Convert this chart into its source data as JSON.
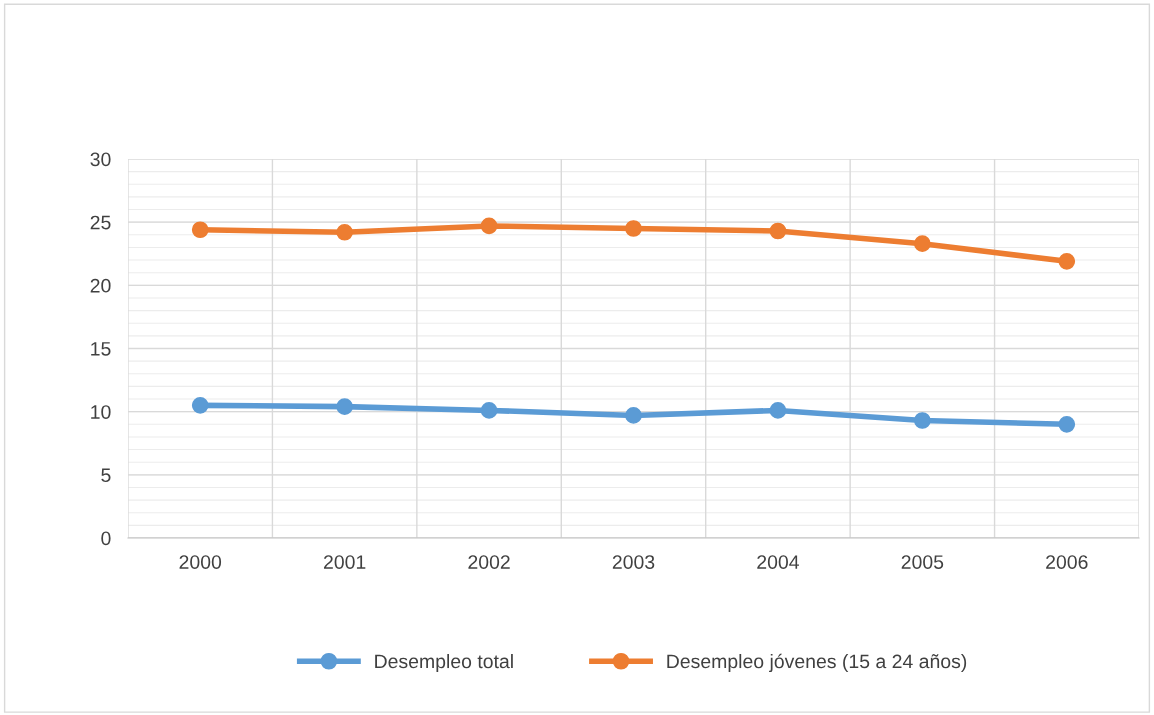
{
  "chart_data": {
    "type": "line",
    "categories": [
      "2000",
      "2001",
      "2002",
      "2003",
      "2004",
      "2005",
      "2006"
    ],
    "series": [
      {
        "name": "Desempleo total",
        "color": "#5b9bd5",
        "values": [
          10.5,
          10.4,
          10.1,
          9.7,
          10.1,
          9.3,
          9.0
        ]
      },
      {
        "name": "Desempleo jóvenes (15 a 24 años)",
        "color": "#ed7d31",
        "values": [
          24.4,
          24.2,
          24.7,
          24.5,
          24.3,
          23.3,
          21.9
        ]
      }
    ],
    "ylim": [
      0,
      30
    ],
    "yticks": [
      0,
      5,
      10,
      15,
      20,
      25,
      30
    ],
    "grid": true,
    "legend": "bottom",
    "marker": "circle",
    "line_style": "solid"
  }
}
